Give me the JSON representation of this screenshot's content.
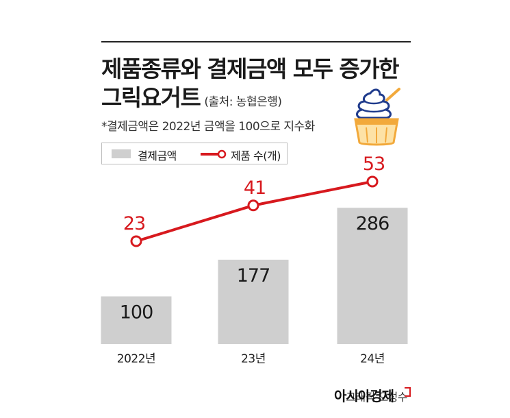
{
  "title": {
    "line1": "제품종류와 결제금액 모두 증가한",
    "line2": "그릭요거트",
    "source": "(출처: 농협은행)"
  },
  "note": "*결제금액은 2022년 금액을 100으로 지수화",
  "legend": {
    "bar_label": "결제금액",
    "line_label": "제품 수(개)"
  },
  "credit": {
    "graphic": "그래픽 오성수",
    "brand": "아시아경제"
  },
  "icons": {
    "illustration": "yogurt-cup-icon"
  },
  "colors": {
    "bar": "#cfcfcf",
    "line": "#d7191e",
    "text": "#222222"
  },
  "chart_data": {
    "type": "bar",
    "categories": [
      "2022년",
      "23년",
      "24년"
    ],
    "series": [
      {
        "name": "결제금액",
        "type": "bar",
        "values": [
          100,
          177,
          286
        ]
      },
      {
        "name": "제품 수(개)",
        "type": "line",
        "values": [
          23,
          41,
          53
        ]
      }
    ]
  }
}
